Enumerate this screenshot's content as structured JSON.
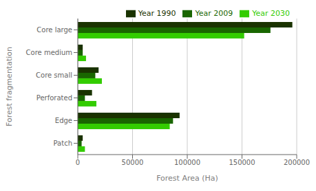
{
  "chart_data": {
    "type": "bar",
    "orientation": "horizontal",
    "xlabel": "Forest Area (Ha)",
    "ylabel": "Forest fragmentation",
    "categories": [
      "Core large",
      "Core medium",
      "Core small",
      "Perforated",
      "Edge",
      "Patch"
    ],
    "series": [
      {
        "name": "Year 1990",
        "color": "#1a3300",
        "values": [
          196000,
          4500,
          19000,
          13000,
          93000,
          4500
        ]
      },
      {
        "name": "Year 2009",
        "color": "#196600",
        "values": [
          176000,
          4500,
          16000,
          6500,
          87000,
          3500
        ]
      },
      {
        "name": "Year 2030",
        "color": "#33cc00",
        "values": [
          152000,
          7500,
          22000,
          17000,
          84000,
          6500
        ]
      }
    ],
    "xlim": [
      0,
      200000
    ],
    "xticks": [
      0,
      50000,
      100000,
      150000,
      200000
    ],
    "grid": true,
    "legend": "top right"
  }
}
